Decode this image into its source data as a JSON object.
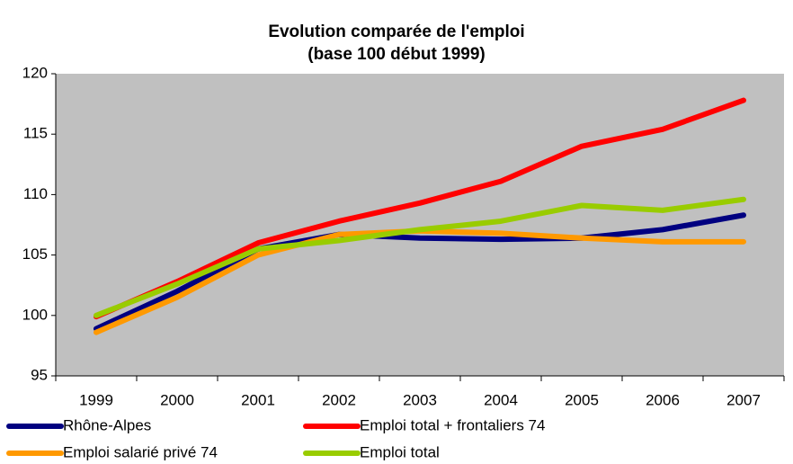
{
  "chart_data": {
    "type": "line",
    "title": "Evolution comparée de l'emploi",
    "subtitle": "(base 100 début 1999)",
    "categories": [
      "1999",
      "2000",
      "2001",
      "2002",
      "2003",
      "2004",
      "2005",
      "2006",
      "2007"
    ],
    "series": [
      {
        "name": "Rhône-Alpes",
        "color": "#000080",
        "values": [
          98.9,
          102.0,
          105.5,
          106.7,
          106.4,
          106.3,
          106.4,
          107.1,
          108.3
        ]
      },
      {
        "name": "Emploi total + frontaliers 74",
        "color": "#ff0000",
        "values": [
          99.9,
          102.8,
          106.0,
          107.8,
          109.3,
          111.1,
          114.0,
          115.4,
          117.8
        ]
      },
      {
        "name": "Emploi salarié privé 74",
        "color": "#ff9900",
        "values": [
          98.6,
          101.5,
          105.0,
          106.7,
          107.0,
          106.8,
          106.4,
          106.1,
          106.1
        ]
      },
      {
        "name": "Emploi total",
        "color": "#99cc00",
        "values": [
          100.0,
          102.6,
          105.5,
          106.2,
          107.1,
          107.8,
          109.1,
          108.7,
          109.6
        ]
      }
    ],
    "ylim": [
      95,
      120
    ],
    "yticks": [
      95,
      100,
      105,
      110,
      115,
      120
    ],
    "grid": false
  }
}
